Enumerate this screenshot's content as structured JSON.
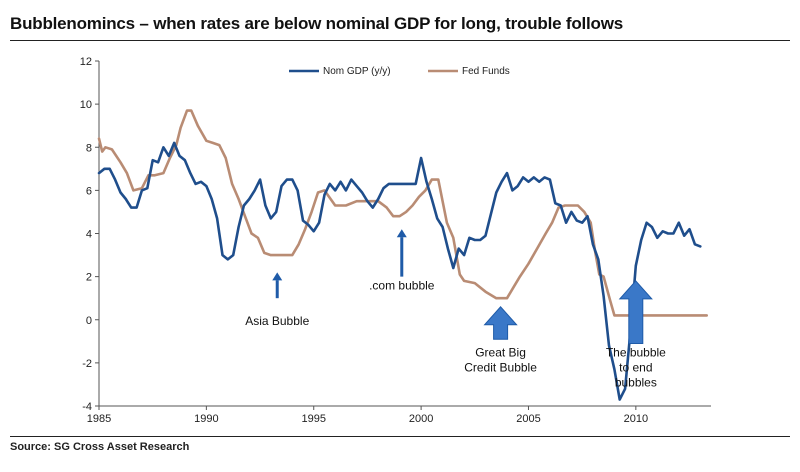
{
  "title": "Bubblenomincs – when rates are below nominal GDP for long, trouble follows",
  "source": "Source: SG Cross Asset Research",
  "colors": {
    "gdp": "#1f4e8c",
    "fed": "#b98c74",
    "arrow": "#1f5ba8",
    "arrow_big": "#3a78c8"
  },
  "chart_data": {
    "type": "line",
    "title": "Bubblenomincs – when rates are below nominal GDP for long, trouble follows",
    "xlabel": "",
    "ylabel": "",
    "xlim": [
      1985,
      2013.5
    ],
    "ylim": [
      -4,
      12
    ],
    "x_ticks": [
      1985,
      1990,
      1995,
      2000,
      2005,
      2010
    ],
    "y_ticks": [
      -4,
      -2,
      0,
      2,
      4,
      6,
      8,
      10,
      12
    ],
    "legend": [
      "Nom GDP  (y/y)",
      "Fed Funds"
    ],
    "legend_position": "top-center",
    "series": [
      {
        "name": "Nom GDP  (y/y)",
        "x": [
          1985,
          1985.25,
          1985.5,
          1985.75,
          1986,
          1986.25,
          1986.5,
          1986.75,
          1987,
          1987.25,
          1987.5,
          1987.75,
          1988,
          1988.25,
          1988.5,
          1988.75,
          1989,
          1989.25,
          1989.5,
          1989.75,
          1990,
          1990.25,
          1990.5,
          1990.75,
          1991,
          1991.25,
          1991.5,
          1991.75,
          1992,
          1992.25,
          1992.5,
          1992.75,
          1993,
          1993.25,
          1993.5,
          1993.75,
          1994,
          1994.25,
          1994.5,
          1994.75,
          1995,
          1995.25,
          1995.5,
          1995.75,
          1996,
          1996.25,
          1996.5,
          1996.75,
          1997,
          1997.25,
          1997.5,
          1997.75,
          1998,
          1998.25,
          1998.5,
          1998.75,
          1999,
          1999.25,
          1999.5,
          1999.75,
          2000,
          2000.25,
          2000.5,
          2000.75,
          2001,
          2001.25,
          2001.5,
          2001.75,
          2002,
          2002.25,
          2002.5,
          2002.75,
          2003,
          2003.25,
          2003.5,
          2003.75,
          2004,
          2004.25,
          2004.5,
          2004.75,
          2005,
          2005.25,
          2005.5,
          2005.75,
          2006,
          2006.25,
          2006.5,
          2006.75,
          2007,
          2007.25,
          2007.5,
          2007.75,
          2008,
          2008.25,
          2008.5,
          2008.75,
          2009,
          2009.25,
          2009.5,
          2009.75,
          2010,
          2010.25,
          2010.5,
          2010.75,
          2011,
          2011.25,
          2011.5,
          2011.75,
          2012,
          2012.25,
          2012.5,
          2012.75,
          2013
        ],
        "y": [
          6.8,
          7.0,
          7.0,
          6.5,
          5.9,
          5.6,
          5.2,
          5.2,
          6.0,
          6.1,
          7.4,
          7.3,
          8.0,
          7.6,
          8.2,
          7.6,
          7.4,
          6.8,
          6.3,
          6.4,
          6.2,
          5.6,
          4.7,
          3.0,
          2.8,
          3.0,
          4.3,
          5.3,
          5.6,
          6.0,
          6.5,
          5.3,
          4.7,
          5.0,
          6.2,
          6.5,
          6.5,
          6.0,
          4.6,
          4.4,
          4.1,
          4.5,
          5.8,
          6.3,
          6.0,
          6.4,
          6.0,
          6.5,
          6.2,
          5.9,
          5.5,
          5.2,
          5.6,
          6.1,
          6.3,
          6.3,
          6.3,
          6.3,
          6.3,
          6.3,
          7.5,
          6.4,
          5.6,
          4.7,
          4.3,
          3.3,
          2.4,
          3.3,
          3.0,
          3.8,
          3.7,
          3.7,
          3.9,
          4.9,
          5.9,
          6.4,
          6.8,
          6.0,
          6.2,
          6.6,
          6.4,
          6.6,
          6.4,
          6.6,
          6.5,
          5.4,
          5.3,
          4.5,
          5.0,
          4.6,
          4.5,
          4.8,
          3.5,
          2.8,
          1.1,
          -1.2,
          -2.3,
          -3.7,
          -3.2,
          -0.5,
          2.5,
          3.7,
          4.5,
          4.3,
          3.8,
          4.1,
          4.0,
          4.0,
          4.5,
          3.9,
          4.2,
          3.5,
          3.4
        ]
      },
      {
        "name": "Fed Funds",
        "x": [
          1985,
          1985.15,
          1985.3,
          1985.6,
          1986,
          1986.3,
          1986.6,
          1987,
          1987.3,
          1987.6,
          1988,
          1988.3,
          1988.6,
          1988.8,
          1989.1,
          1989.3,
          1989.6,
          1990,
          1990.3,
          1990.6,
          1990.9,
          1991.2,
          1991.5,
          1991.8,
          1992.1,
          1992.4,
          1992.7,
          1993,
          1993.5,
          1994,
          1994.3,
          1994.6,
          1994.9,
          1995.2,
          1995.5,
          1996,
          1996.5,
          1997,
          1997.5,
          1998,
          1998.4,
          1998.7,
          1999,
          1999.3,
          1999.6,
          1999.9,
          2000.2,
          2000.5,
          2000.8,
          2001,
          2001.2,
          2001.5,
          2001.8,
          2002,
          2002.5,
          2003,
          2003.5,
          2004,
          2004.3,
          2004.6,
          2005,
          2005.4,
          2005.8,
          2006.1,
          2006.4,
          2006.7,
          2007,
          2007.3,
          2007.6,
          2007.9,
          2008.1,
          2008.3,
          2008.5,
          2008.8,
          2009,
          2009.5,
          2010,
          2011,
          2012,
          2013,
          2013.3
        ],
        "y": [
          8.4,
          7.8,
          8.0,
          7.9,
          7.3,
          6.8,
          6.0,
          6.1,
          6.7,
          6.7,
          6.8,
          7.5,
          8.1,
          8.9,
          9.7,
          9.7,
          9.0,
          8.3,
          8.2,
          8.1,
          7.5,
          6.3,
          5.6,
          4.8,
          4.0,
          3.8,
          3.1,
          3.0,
          3.0,
          3.0,
          3.5,
          4.2,
          5.0,
          5.9,
          6.0,
          5.3,
          5.3,
          5.5,
          5.5,
          5.5,
          5.2,
          4.8,
          4.8,
          5.0,
          5.3,
          5.7,
          6.0,
          6.5,
          6.5,
          5.5,
          4.5,
          3.8,
          2.1,
          1.8,
          1.7,
          1.3,
          1.0,
          1.0,
          1.5,
          2.0,
          2.6,
          3.3,
          4.0,
          4.5,
          5.2,
          5.3,
          5.3,
          5.3,
          5.0,
          4.5,
          3.2,
          2.1,
          2.0,
          0.9,
          0.2,
          0.2,
          0.2,
          0.2,
          0.2,
          0.2,
          0.2
        ]
      }
    ],
    "annotations": [
      {
        "lines": [
          "Asia Bubble"
        ],
        "x": 1993.3,
        "y": -0.25,
        "arrow_from": 1.0,
        "arrow_to": 2.2,
        "arrow_style": "thin"
      },
      {
        "lines": [
          ".com bubble"
        ],
        "x": 1999.1,
        "y": 1.4,
        "arrow_from": 2.0,
        "arrow_to": 4.2,
        "arrow_style": "thin"
      },
      {
        "lines": [
          "Great Big",
          "Credit Bubble"
        ],
        "x": 2003.7,
        "y": -1.7,
        "arrow_from": -0.9,
        "arrow_to": 0.6,
        "arrow_style": "big"
      },
      {
        "lines": [
          "The bubble",
          "to end",
          "bubbles"
        ],
        "x": 2010.0,
        "y": -1.7,
        "arrow_from": -1.1,
        "arrow_to": 1.8,
        "arrow_style": "big"
      }
    ]
  }
}
